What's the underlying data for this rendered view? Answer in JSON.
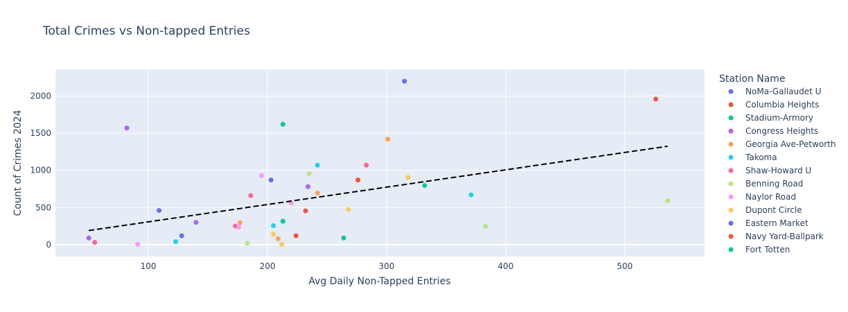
{
  "chart_data": {
    "type": "scatter",
    "title": "Total Crimes vs Non-tapped Entries",
    "xlabel": "Avg Daily Non-Tapped Entries",
    "ylabel": "Count of Crimes 2024",
    "xlim": [
      22,
      567
    ],
    "ylim": [
      -160,
      2360
    ],
    "xticks": [
      100,
      200,
      300,
      400,
      500
    ],
    "yticks": [
      0,
      500,
      1000,
      1500,
      2000
    ],
    "yticklabels": [
      "0",
      "500",
      "1000",
      "1500",
      "2000"
    ],
    "grid": true,
    "legend_title": "Station Name",
    "legend_position": "right",
    "series": [
      {
        "name": "NoMa-Gallaudet U",
        "color": "#636efa",
        "points": [
          [
            315,
            2200
          ],
          [
            109,
            460
          ],
          [
            203,
            870
          ],
          [
            128,
            120
          ]
        ]
      },
      {
        "name": "Columbia Heights",
        "color": "#EF553B",
        "points": [
          [
            526,
            1960
          ],
          [
            276,
            870
          ],
          [
            232,
            455
          ],
          [
            224,
            120
          ]
        ]
      },
      {
        "name": "Stadium-Armory",
        "color": "#00cc96",
        "points": [
          [
            213,
            1620
          ],
          [
            332,
            795
          ],
          [
            213,
            315
          ],
          [
            264,
            90
          ]
        ]
      },
      {
        "name": "Congress Heights",
        "color": "#ab63fa",
        "points": [
          [
            82,
            1570
          ],
          [
            234,
            780
          ],
          [
            140,
            300
          ],
          [
            50,
            90
          ]
        ]
      },
      {
        "name": "Georgia Ave-Petworth",
        "color": "#FFA15A",
        "points": [
          [
            301,
            1420
          ],
          [
            242,
            695
          ],
          [
            177,
            295
          ],
          [
            209,
            80
          ]
        ]
      },
      {
        "name": "Takoma",
        "color": "#19d3f3",
        "points": [
          [
            242,
            1070
          ],
          [
            371,
            670
          ],
          [
            205,
            255
          ],
          [
            123,
            40
          ]
        ]
      },
      {
        "name": "Shaw-Howard U",
        "color": "#FF6692",
        "points": [
          [
            283,
            1070
          ],
          [
            186,
            660
          ],
          [
            173,
            250
          ],
          [
            55,
            30
          ]
        ]
      },
      {
        "name": "Benning Road",
        "color": "#B6E880",
        "points": [
          [
            235,
            955
          ],
          [
            536,
            590
          ],
          [
            383,
            245
          ],
          [
            183,
            20
          ]
        ]
      },
      {
        "name": "Naylor Road",
        "color": "#FF97FF",
        "points": [
          [
            195,
            930
          ],
          [
            220,
            560
          ],
          [
            176,
            235
          ],
          [
            91,
            5
          ]
        ]
      },
      {
        "name": "Dupont Circle",
        "color": "#FECB52",
        "points": [
          [
            318,
            905
          ],
          [
            268,
            475
          ],
          [
            205,
            140
          ],
          [
            212,
            5
          ]
        ]
      }
    ],
    "legend_extra": [
      {
        "name": "Eastern Market",
        "color": "#636efa"
      },
      {
        "name": "Navy Yard-Ballpark",
        "color": "#EF553B"
      },
      {
        "name": "Fort Totten",
        "color": "#00cc96"
      }
    ],
    "trendline": {
      "style": "dashed",
      "color": "#000000",
      "x": [
        50,
        536
      ],
      "y": [
        190,
        1325
      ]
    }
  }
}
